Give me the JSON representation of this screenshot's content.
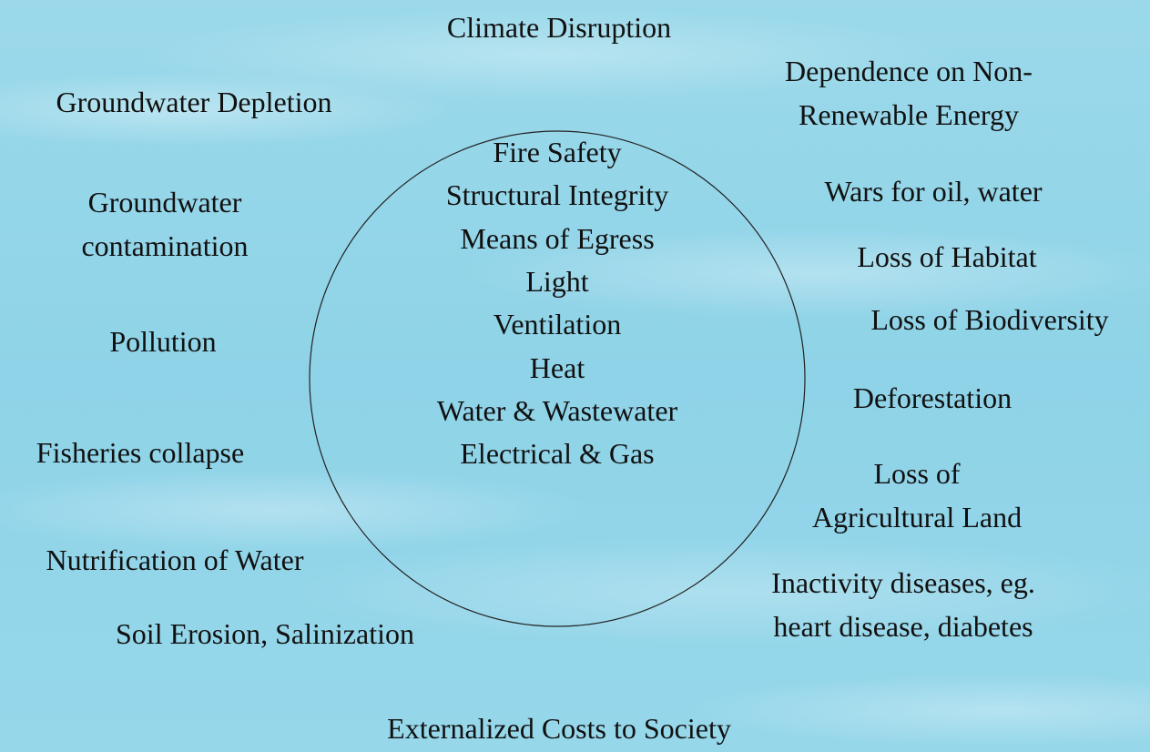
{
  "center_items": [
    "Fire Safety",
    "Structural Integrity",
    "Means of Egress",
    "Light",
    "Ventilation",
    "Heat",
    "Water & Wastewater",
    "Electrical & Gas"
  ],
  "outer_items": [
    {
      "lines": [
        "Climate Disruption"
      ]
    },
    {
      "lines": [
        "Groundwater Depletion"
      ]
    },
    {
      "lines": [
        "Dependence on Non-",
        "Renewable Energy"
      ]
    },
    {
      "lines": [
        "Groundwater",
        "contamination"
      ]
    },
    {
      "lines": [
        "Wars for oil, water"
      ]
    },
    {
      "lines": [
        "Loss of Habitat"
      ]
    },
    {
      "lines": [
        "Pollution"
      ]
    },
    {
      "lines": [
        "Loss of Biodiversity"
      ]
    },
    {
      "lines": [
        "Deforestation"
      ]
    },
    {
      "lines": [
        "Fisheries collapse"
      ]
    },
    {
      "lines": [
        "Loss of",
        "Agricultural Land"
      ]
    },
    {
      "lines": [
        "Nutrification of Water"
      ]
    },
    {
      "lines": [
        "Inactivity diseases, eg.",
        "heart disease, diabetes"
      ]
    },
    {
      "lines": [
        "Soil Erosion, Salinization"
      ]
    },
    {
      "lines": [
        "Externalized Costs to Society"
      ]
    }
  ]
}
